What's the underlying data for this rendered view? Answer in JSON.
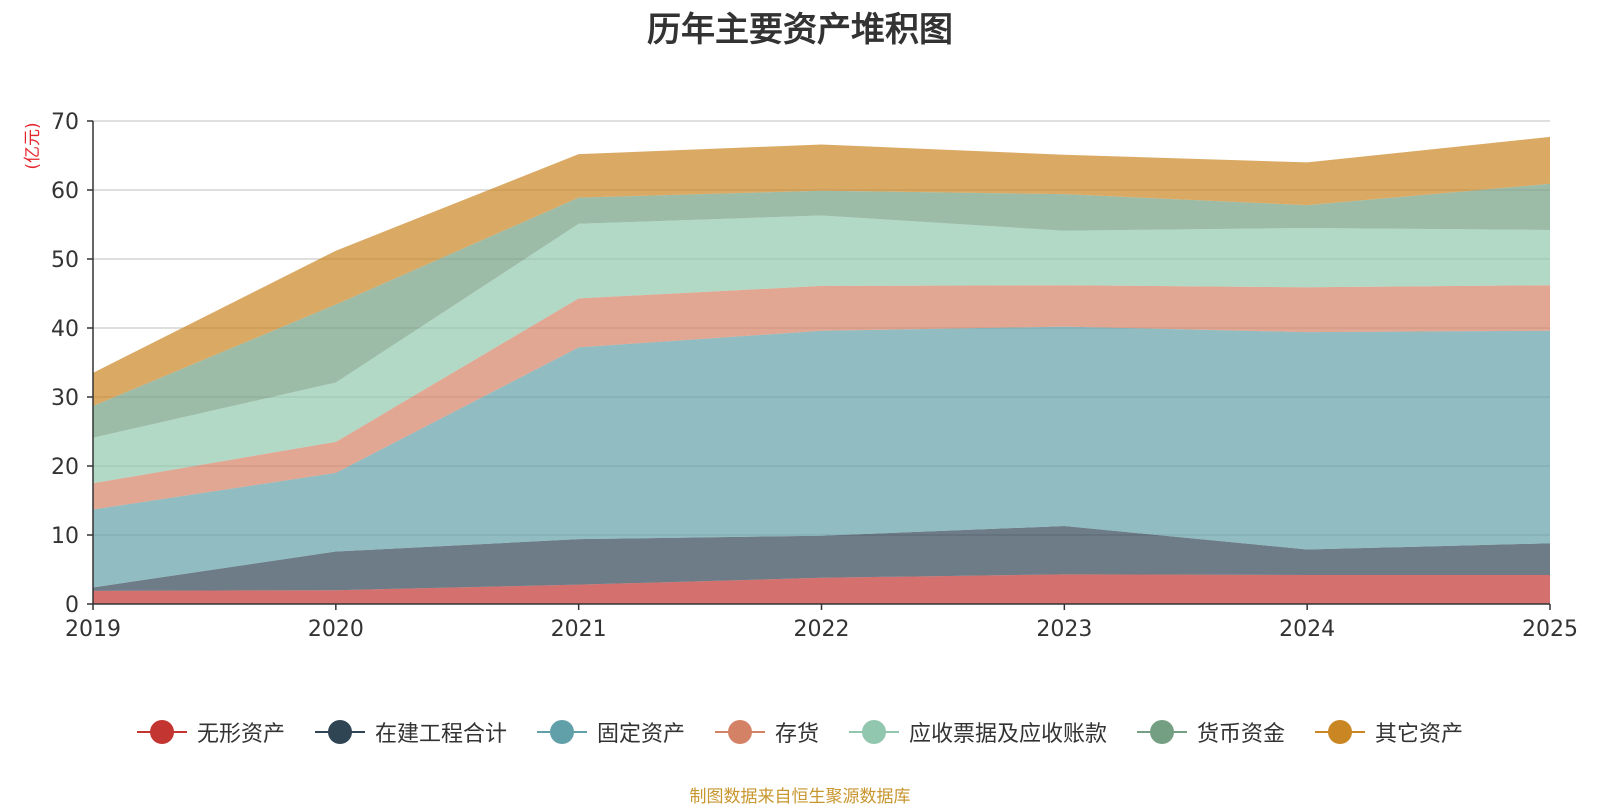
{
  "chart_data": {
    "type": "area",
    "stacked": true,
    "title": "历年主要资产堆积图",
    "ylabel": "(亿元)",
    "x": [
      "2019",
      "2020",
      "2021",
      "2022",
      "2023",
      "2024",
      "2025"
    ],
    "ylim": [
      0,
      70
    ],
    "yticks": [
      0,
      10,
      20,
      30,
      40,
      50,
      60,
      70
    ],
    "grid": true,
    "legend_position": "bottom",
    "series": [
      {
        "name": "无形资产",
        "color": "#c23531",
        "values": [
          1.9,
          2.0,
          2.8,
          3.8,
          4.3,
          4.2,
          4.2
        ]
      },
      {
        "name": "在建工程合计",
        "color": "#2f4554",
        "values": [
          0.5,
          5.6,
          6.6,
          6.1,
          7.0,
          3.7,
          4.6
        ]
      },
      {
        "name": "固定资产",
        "color": "#61a0a8",
        "values": [
          11.3,
          11.4,
          27.8,
          29.7,
          28.9,
          31.5,
          30.8
        ]
      },
      {
        "name": "存货",
        "color": "#d48265",
        "values": [
          3.8,
          4.5,
          7.1,
          6.5,
          6.0,
          6.5,
          6.6
        ]
      },
      {
        "name": "应收票据及应收账款",
        "color": "#91c7ae",
        "values": [
          6.6,
          8.6,
          10.8,
          10.2,
          7.9,
          8.6,
          8.0
        ]
      },
      {
        "name": "货币资金",
        "color": "#749f83",
        "values": [
          4.6,
          11.3,
          3.8,
          3.6,
          5.3,
          3.3,
          6.7
        ]
      },
      {
        "name": "其它资产",
        "color": "#ca8622",
        "values": [
          4.8,
          7.8,
          6.3,
          6.7,
          5.7,
          6.2,
          6.8
        ]
      }
    ]
  },
  "footer": {
    "source": "制图数据来自恒生聚源数据库"
  }
}
